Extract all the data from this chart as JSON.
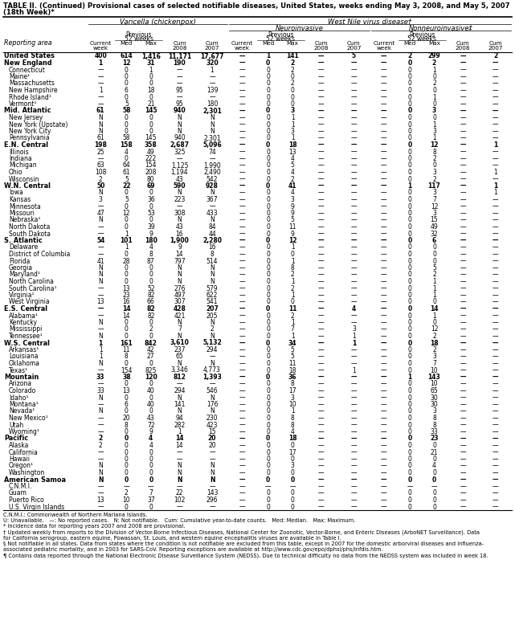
{
  "title": "TABLE II. (Continued) Provisional cases of selected notifiable diseases, United States, weeks ending May 3, 2008, and May 5, 2007",
  "subtitle": "(18th Week)*",
  "rows": [
    [
      "United States",
      "400",
      "614",
      "1,416",
      "11,171",
      "17,677",
      "—",
      "1",
      "141",
      "—",
      "5",
      "—",
      "2",
      "299",
      "—",
      "2"
    ],
    [
      "New England",
      "1",
      "12",
      "31",
      "190",
      "320",
      "—",
      "0",
      "2",
      "—",
      "—",
      "—",
      "0",
      "2",
      "—",
      "—"
    ],
    [
      "Connecticut",
      "—",
      "0",
      "1",
      "—",
      "1",
      "—",
      "0",
      "2",
      "—",
      "—",
      "—",
      "0",
      "1",
      "—",
      "—"
    ],
    [
      "Maine¹",
      "—",
      "0",
      "0",
      "—",
      "—",
      "—",
      "0",
      "0",
      "—",
      "—",
      "—",
      "0",
      "0",
      "—",
      "—"
    ],
    [
      "Massachusetts",
      "—",
      "0",
      "0",
      "—",
      "—",
      "—",
      "0",
      "2",
      "—",
      "—",
      "—",
      "0",
      "2",
      "—",
      "—"
    ],
    [
      "New Hampshire",
      "1",
      "6",
      "18",
      "95",
      "139",
      "—",
      "0",
      "0",
      "—",
      "—",
      "—",
      "0",
      "0",
      "—",
      "—"
    ],
    [
      "Rhode Island¹",
      "—",
      "0",
      "0",
      "—",
      "—",
      "—",
      "0",
      "0",
      "—",
      "—",
      "—",
      "0",
      "1",
      "—",
      "—"
    ],
    [
      "Vermont¹",
      "—",
      "5",
      "21",
      "95",
      "180",
      "—",
      "0",
      "0",
      "—",
      "—",
      "—",
      "0",
      "0",
      "—",
      "—"
    ],
    [
      "Mid. Atlantic",
      "61",
      "58",
      "145",
      "940",
      "2,301",
      "—",
      "0",
      "3",
      "—",
      "—",
      "—",
      "0",
      "3",
      "—",
      "—"
    ],
    [
      "New Jersey",
      "N",
      "0",
      "0",
      "N",
      "N",
      "—",
      "0",
      "1",
      "—",
      "—",
      "—",
      "0",
      "0",
      "—",
      "—"
    ],
    [
      "New York (Upstate)",
      "N",
      "0",
      "0",
      "N",
      "N",
      "—",
      "0",
      "1",
      "—",
      "—",
      "—",
      "0",
      "1",
      "—",
      "—"
    ],
    [
      "New York City",
      "N",
      "0",
      "0",
      "N",
      "N",
      "—",
      "0",
      "3",
      "—",
      "—",
      "—",
      "0",
      "3",
      "—",
      "—"
    ],
    [
      "Pennsylvania",
      "61",
      "58",
      "145",
      "940",
      "2,301",
      "—",
      "0",
      "1",
      "—",
      "—",
      "—",
      "0",
      "1",
      "—",
      "—"
    ],
    [
      "E.N. Central",
      "198",
      "158",
      "358",
      "2,687",
      "5,096",
      "—",
      "0",
      "18",
      "—",
      "—",
      "—",
      "0",
      "12",
      "—",
      "1"
    ],
    [
      "Illinois",
      "25",
      "4",
      "49",
      "325",
      "74",
      "—",
      "0",
      "13",
      "—",
      "—",
      "—",
      "0",
      "8",
      "—",
      "—"
    ],
    [
      "Indiana",
      "—",
      "0",
      "222",
      "—",
      "—",
      "—",
      "0",
      "4",
      "—",
      "—",
      "—",
      "0",
      "2",
      "—",
      "—"
    ],
    [
      "Michigan",
      "63",
      "64",
      "154",
      "1,125",
      "1,990",
      "—",
      "0",
      "5",
      "—",
      "—",
      "—",
      "0",
      "0",
      "—",
      "—"
    ],
    [
      "Ohio",
      "108",
      "61",
      "208",
      "1,194",
      "2,490",
      "—",
      "0",
      "4",
      "—",
      "—",
      "—",
      "0",
      "3",
      "—",
      "1"
    ],
    [
      "Wisconsin",
      "2",
      "5",
      "80",
      "43",
      "542",
      "—",
      "0",
      "2",
      "—",
      "—",
      "—",
      "0",
      "2",
      "—",
      "—"
    ],
    [
      "W.N. Central",
      "50",
      "22",
      "69",
      "590",
      "928",
      "—",
      "0",
      "41",
      "—",
      "—",
      "—",
      "1",
      "117",
      "—",
      "1"
    ],
    [
      "Iowa",
      "N",
      "0",
      "0",
      "N",
      "N",
      "—",
      "0",
      "4",
      "—",
      "—",
      "—",
      "0",
      "3",
      "—",
      "1"
    ],
    [
      "Kansas",
      "3",
      "5",
      "36",
      "223",
      "367",
      "—",
      "0",
      "3",
      "—",
      "—",
      "—",
      "0",
      "7",
      "—",
      "—"
    ],
    [
      "Minnesota",
      "—",
      "0",
      "0",
      "—",
      "—",
      "—",
      "0",
      "9",
      "—",
      "—",
      "—",
      "0",
      "12",
      "—",
      "—"
    ],
    [
      "Missouri",
      "47",
      "12",
      "53",
      "308",
      "433",
      "—",
      "0",
      "9",
      "—",
      "—",
      "—",
      "0",
      "3",
      "—",
      "—"
    ],
    [
      "Nebraska¹",
      "N",
      "0",
      "0",
      "N",
      "N",
      "—",
      "0",
      "5",
      "—",
      "—",
      "—",
      "0",
      "15",
      "—",
      "—"
    ],
    [
      "North Dakota",
      "—",
      "0",
      "39",
      "43",
      "84",
      "—",
      "0",
      "11",
      "—",
      "—",
      "—",
      "0",
      "49",
      "—",
      "—"
    ],
    [
      "South Dakota",
      "—",
      "1",
      "9",
      "16",
      "44",
      "—",
      "0",
      "9",
      "—",
      "—",
      "—",
      "0",
      "32",
      "—",
      "—"
    ],
    [
      "S. Atlantic",
      "54",
      "101",
      "180",
      "1,900",
      "2,280",
      "—",
      "0",
      "12",
      "—",
      "—",
      "—",
      "0",
      "6",
      "—",
      "—"
    ],
    [
      "Delaware",
      "—",
      "1",
      "4",
      "9",
      "16",
      "—",
      "0",
      "1",
      "—",
      "—",
      "—",
      "0",
      "0",
      "—",
      "—"
    ],
    [
      "District of Columbia",
      "—",
      "0",
      "8",
      "14",
      "8",
      "—",
      "0",
      "0",
      "—",
      "—",
      "—",
      "0",
      "0",
      "—",
      "—"
    ],
    [
      "Florida",
      "41",
      "28",
      "87",
      "797",
      "514",
      "—",
      "0",
      "1",
      "—",
      "—",
      "—",
      "0",
      "0",
      "—",
      "—"
    ],
    [
      "Georgia",
      "N",
      "0",
      "0",
      "N",
      "N",
      "—",
      "0",
      "8",
      "—",
      "—",
      "—",
      "0",
      "5",
      "—",
      "—"
    ],
    [
      "Maryland¹",
      "N",
      "0",
      "0",
      "N",
      "N",
      "—",
      "0",
      "2",
      "—",
      "—",
      "—",
      "0",
      "2",
      "—",
      "—"
    ],
    [
      "North Carolina",
      "N",
      "0",
      "0",
      "N",
      "N",
      "—",
      "0",
      "1",
      "—",
      "—",
      "—",
      "0",
      "1",
      "—",
      "—"
    ],
    [
      "South Carolina¹",
      "—",
      "13",
      "52",
      "276",
      "579",
      "—",
      "0",
      "2",
      "—",
      "—",
      "—",
      "0",
      "1",
      "—",
      "—"
    ],
    [
      "Virginia¹",
      "—",
      "23",
      "82",
      "497",
      "622",
      "—",
      "0",
      "1",
      "—",
      "—",
      "—",
      "0",
      "1",
      "—",
      "—"
    ],
    [
      "West Virginia",
      "13",
      "16",
      "66",
      "307",
      "541",
      "—",
      "0",
      "0",
      "—",
      "—",
      "—",
      "0",
      "0",
      "—",
      "—"
    ],
    [
      "E.S. Central",
      "—",
      "14",
      "82",
      "428",
      "207",
      "—",
      "0",
      "11",
      "—",
      "4",
      "—",
      "0",
      "14",
      "—",
      "—"
    ],
    [
      "Alabama¹",
      "—",
      "14",
      "82",
      "421",
      "205",
      "—",
      "0",
      "2",
      "—",
      "—",
      "—",
      "0",
      "1",
      "—",
      "—"
    ],
    [
      "Kentucky",
      "N",
      "0",
      "0",
      "N",
      "N",
      "—",
      "0",
      "1",
      "—",
      "—",
      "—",
      "0",
      "0",
      "—",
      "—"
    ],
    [
      "Mississippi",
      "—",
      "0",
      "2",
      "7",
      "2",
      "—",
      "0",
      "7",
      "—",
      "3",
      "—",
      "0",
      "12",
      "—",
      "—"
    ],
    [
      "Tennessee¹",
      "N",
      "0",
      "0",
      "N",
      "N",
      "—",
      "0",
      "1",
      "—",
      "1",
      "—",
      "0",
      "2",
      "—",
      "—"
    ],
    [
      "W.S. Central",
      "1",
      "161",
      "842",
      "3,610",
      "5,132",
      "—",
      "0",
      "34",
      "—",
      "1",
      "—",
      "0",
      "18",
      "—",
      "—"
    ],
    [
      "Arkansas¹",
      "1",
      "11",
      "42",
      "237",
      "294",
      "—",
      "0",
      "5",
      "—",
      "—",
      "—",
      "0",
      "2",
      "—",
      "—"
    ],
    [
      "Louisiana",
      "1",
      "8",
      "27",
      "65",
      "—",
      "—",
      "0",
      "5",
      "—",
      "—",
      "—",
      "0",
      "3",
      "—",
      "—"
    ],
    [
      "Oklahoma",
      "N",
      "0",
      "0",
      "N",
      "N",
      "—",
      "0",
      "11",
      "—",
      "—",
      "—",
      "0",
      "7",
      "—",
      "—"
    ],
    [
      "Texas¹",
      "—",
      "154",
      "825",
      "3,346",
      "4,773",
      "—",
      "0",
      "18",
      "—",
      "1",
      "—",
      "0",
      "10",
      "—",
      "—"
    ],
    [
      "Mountain",
      "33",
      "38",
      "120",
      "812",
      "1,393",
      "—",
      "0",
      "36",
      "—",
      "—",
      "—",
      "1",
      "143",
      "—",
      "—"
    ],
    [
      "Arizona",
      "—",
      "0",
      "0",
      "—",
      "—",
      "—",
      "0",
      "8",
      "—",
      "—",
      "—",
      "0",
      "10",
      "—",
      "—"
    ],
    [
      "Colorado",
      "33",
      "13",
      "40",
      "294",
      "546",
      "—",
      "0",
      "17",
      "—",
      "—",
      "—",
      "0",
      "65",
      "—",
      "—"
    ],
    [
      "Idaho¹",
      "N",
      "0",
      "0",
      "N",
      "N",
      "—",
      "0",
      "3",
      "—",
      "—",
      "—",
      "0",
      "30",
      "—",
      "—"
    ],
    [
      "Montana¹",
      "—",
      "6",
      "40",
      "141",
      "176",
      "—",
      "0",
      "10",
      "—",
      "—",
      "—",
      "0",
      "30",
      "—",
      "—"
    ],
    [
      "Nevada¹",
      "N",
      "0",
      "0",
      "N",
      "N",
      "—",
      "0",
      "1",
      "—",
      "—",
      "—",
      "0",
      "3",
      "—",
      "—"
    ],
    [
      "New Mexico¹",
      "—",
      "20",
      "43",
      "94",
      "230",
      "—",
      "0",
      "8",
      "—",
      "—",
      "—",
      "0",
      "8",
      "—",
      "—"
    ],
    [
      "Utah",
      "—",
      "8",
      "72",
      "282",
      "423",
      "—",
      "0",
      "8",
      "—",
      "—",
      "—",
      "0",
      "8",
      "—",
      "—"
    ],
    [
      "Wyoming¹",
      "—",
      "0",
      "9",
      "1",
      "15",
      "—",
      "0",
      "4",
      "—",
      "—",
      "—",
      "0",
      "33",
      "—",
      "—"
    ],
    [
      "Pacific",
      "2",
      "0",
      "4",
      "14",
      "20",
      "—",
      "0",
      "18",
      "—",
      "—",
      "—",
      "0",
      "23",
      "—",
      "—"
    ],
    [
      "Alaska",
      "2",
      "0",
      "4",
      "14",
      "20",
      "—",
      "0",
      "0",
      "—",
      "—",
      "—",
      "0",
      "0",
      "—",
      "—"
    ],
    [
      "California",
      "—",
      "0",
      "0",
      "—",
      "—",
      "—",
      "0",
      "17",
      "—",
      "—",
      "—",
      "0",
      "21",
      "—",
      "—"
    ],
    [
      "Hawaii",
      "—",
      "0",
      "0",
      "—",
      "—",
      "—",
      "0",
      "0",
      "—",
      "—",
      "—",
      "0",
      "0",
      "—",
      "—"
    ],
    [
      "Oregon¹",
      "N",
      "0",
      "0",
      "N",
      "N",
      "—",
      "0",
      "3",
      "—",
      "—",
      "—",
      "0",
      "4",
      "—",
      "—"
    ],
    [
      "Washington",
      "N",
      "0",
      "0",
      "N",
      "N",
      "—",
      "0",
      "0",
      "—",
      "—",
      "—",
      "0",
      "0",
      "—",
      "—"
    ],
    [
      "American Samoa",
      "N",
      "0",
      "0",
      "N",
      "N",
      "—",
      "0",
      "0",
      "—",
      "—",
      "—",
      "0",
      "0",
      "—",
      "—"
    ],
    [
      "C.N.M.I.",
      "—",
      "—",
      "—",
      "—",
      "—",
      "—",
      "—",
      "—",
      "—",
      "—",
      "—",
      "—",
      "—",
      "—",
      "—"
    ],
    [
      "Guam",
      "—",
      "2",
      "7",
      "22",
      "143",
      "—",
      "0",
      "0",
      "—",
      "—",
      "—",
      "0",
      "0",
      "—",
      "—"
    ],
    [
      "Puerto Rico",
      "13",
      "10",
      "37",
      "102",
      "296",
      "—",
      "0",
      "0",
      "—",
      "—",
      "—",
      "0",
      "0",
      "—",
      "—"
    ],
    [
      "U.S. Virgin Islands",
      "—",
      "0",
      "0",
      "—",
      "—",
      "—",
      "0",
      "0",
      "—",
      "—",
      "—",
      "0",
      "0",
      "—",
      "—"
    ]
  ],
  "bold_rows": [
    0,
    1,
    8,
    13,
    19,
    27,
    37,
    42,
    47,
    56,
    62
  ],
  "footnotes": [
    "C.N.M.I.: Commonwealth of Northern Mariana Islands.",
    "U: Unavailable.   —: No reported cases.   N: Not notifiable.   Cum: Cumulative year-to-date counts.   Med: Median.   Max: Maximum.",
    "* Incidence data for reporting years 2007 and 2008 are provisional.",
    "† Updated weekly from reports to the Division of Vector-Borne Infectious Diseases, National Center for Zoonotic, Vector-Borne, and Enteric Diseases (ArboNET Surveillance). Data",
    "for California serogroup, eastern equine, Powassan, St. Louis, and western equine encephalitis viruses are available in Table I.",
    "§ Not notifiable in all states. Data from states where the condition is not notifiable are excluded from this table, except in 2007 for the domestic arborviral diseases and influenza-",
    "associated pediatric mortality, and in 2003 for SARS-CoV. Reporting exceptions are available at http://www.cdc.gov/epo/dphsi/phs/infdis.htm.",
    "¶ Contains data reported through the National Electronic Disease Surveillance System (NEDSS). Due to technical difficulty no data from the NEDSS system was included in week 18."
  ]
}
